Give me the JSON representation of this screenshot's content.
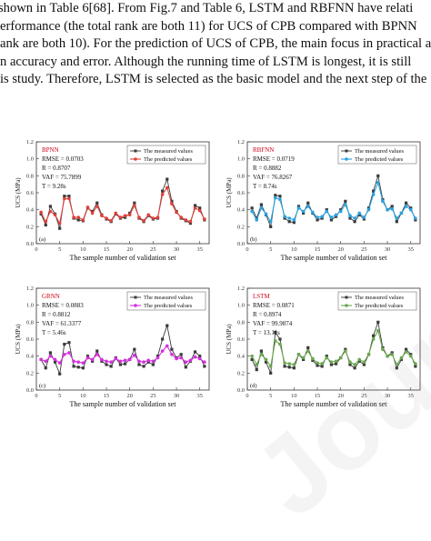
{
  "text_lines": [
    "shown in Table 6[68]. From Fig.7 and Table 6, LSTM and RBFNN have relati",
    "erformance (the total rank are both 11) for UCS of CPB compared with BPNN",
    "ank are both 10). For the prediction of UCS of CPB, the main focus in practical ap",
    "n accuracy and error. Although the running time of LSTM is longest, it is still",
    "is study. Therefore, LSTM is selected as the basic model and the next step of the"
  ],
  "watermark": "Journal Pre-proof",
  "colors": {
    "measured": "#3a3a3a",
    "title": "#d0021b"
  },
  "chart_data": [
    {
      "type": "line",
      "panel": "(a)",
      "model": "BPNN",
      "stats": [
        "RMSE = 0.0703",
        "R = 0.8707",
        "VAF = 75.7899",
        "T = 9.28s"
      ],
      "xlabel": "The sample number of validation set",
      "ylabel": "UCS (MPa)",
      "xlim": [
        0,
        37
      ],
      "ylim": [
        0.0,
        1.2
      ],
      "xticks": [
        "0",
        "5",
        "10",
        "15",
        "20",
        "25",
        "30",
        "35"
      ],
      "yticks": [
        "0.0",
        "0.2",
        "0.4",
        "0.6",
        "0.8",
        "1.0",
        "1.2"
      ],
      "legend": [
        "The measured values",
        "The predicted values"
      ],
      "color": "#e0413a",
      "series": [
        {
          "name": "The measured values",
          "values": [
            0.35,
            0.22,
            0.44,
            0.35,
            0.18,
            0.56,
            0.56,
            0.3,
            0.28,
            0.27,
            0.42,
            0.38,
            0.48,
            0.34,
            0.29,
            0.26,
            0.35,
            0.3,
            0.31,
            0.36,
            0.48,
            0.3,
            0.26,
            0.33,
            0.29,
            0.3,
            0.62,
            0.76,
            0.5,
            0.38,
            0.3,
            0.27,
            0.24,
            0.45,
            0.42,
            0.28
          ]
        },
        {
          "name": "The predicted values",
          "values": [
            0.37,
            0.26,
            0.38,
            0.34,
            0.24,
            0.53,
            0.53,
            0.31,
            0.31,
            0.28,
            0.43,
            0.36,
            0.44,
            0.33,
            0.3,
            0.27,
            0.36,
            0.31,
            0.33,
            0.34,
            0.45,
            0.31,
            0.27,
            0.34,
            0.3,
            0.31,
            0.58,
            0.66,
            0.47,
            0.37,
            0.31,
            0.28,
            0.26,
            0.42,
            0.39,
            0.29
          ]
        }
      ]
    },
    {
      "type": "line",
      "panel": "(b)",
      "model": "RBFNN",
      "stats": [
        "RMSE = 0.0719",
        "R = 0.8882",
        "VAF = 76.8267",
        "T = 8.74s"
      ],
      "xlabel": "The sample number of validation set",
      "ylabel": "UCS (MPa)",
      "xlim": [
        0,
        37
      ],
      "ylim": [
        0.0,
        1.2
      ],
      "xticks": [
        "0",
        "5",
        "10",
        "15",
        "20",
        "25",
        "30",
        "35"
      ],
      "yticks": [
        "0.0",
        "0.2",
        "0.4",
        "0.6",
        "0.8",
        "1.0",
        "1.2"
      ],
      "legend": [
        "The measured values",
        "The predicted values"
      ],
      "color": "#2aa3e0",
      "series": [
        {
          "name": "The measured values",
          "values": [
            0.42,
            0.3,
            0.46,
            0.34,
            0.2,
            0.57,
            0.56,
            0.3,
            0.26,
            0.25,
            0.44,
            0.36,
            0.48,
            0.36,
            0.28,
            0.3,
            0.4,
            0.28,
            0.32,
            0.4,
            0.5,
            0.3,
            0.26,
            0.34,
            0.29,
            0.42,
            0.62,
            0.8,
            0.52,
            0.4,
            0.44,
            0.26,
            0.36,
            0.48,
            0.42,
            0.28
          ]
        },
        {
          "name": "The predicted values",
          "values": [
            0.38,
            0.28,
            0.42,
            0.35,
            0.26,
            0.54,
            0.52,
            0.32,
            0.3,
            0.28,
            0.42,
            0.38,
            0.44,
            0.37,
            0.31,
            0.32,
            0.38,
            0.31,
            0.34,
            0.38,
            0.46,
            0.33,
            0.3,
            0.36,
            0.31,
            0.4,
            0.58,
            0.72,
            0.5,
            0.4,
            0.41,
            0.3,
            0.36,
            0.44,
            0.4,
            0.3
          ]
        }
      ]
    },
    {
      "type": "line",
      "panel": "(c)",
      "model": "GRNN",
      "stats": [
        "RMSE = 0.0883",
        "R = 0.8812",
        "VAF = 61.3377",
        "T = 5.46s"
      ],
      "xlabel": "The sample number of validation set",
      "ylabel": "UCS (MPa)",
      "xlim": [
        0,
        37
      ],
      "ylim": [
        0.0,
        1.2
      ],
      "xticks": [
        "0",
        "5",
        "10",
        "15",
        "20",
        "25",
        "30",
        "35"
      ],
      "yticks": [
        "0.0",
        "0.2",
        "0.4",
        "0.6",
        "0.8",
        "1.0",
        "1.2"
      ],
      "legend": [
        "The measured values",
        "The predicted values"
      ],
      "color": "#d62ee0",
      "series": [
        {
          "name": "The measured values",
          "values": [
            0.36,
            0.26,
            0.44,
            0.33,
            0.19,
            0.54,
            0.56,
            0.28,
            0.27,
            0.26,
            0.4,
            0.34,
            0.46,
            0.34,
            0.3,
            0.28,
            0.38,
            0.3,
            0.31,
            0.36,
            0.48,
            0.3,
            0.28,
            0.33,
            0.3,
            0.4,
            0.6,
            0.76,
            0.48,
            0.38,
            0.42,
            0.27,
            0.34,
            0.45,
            0.4,
            0.28
          ]
        },
        {
          "name": "The predicted values",
          "values": [
            0.36,
            0.34,
            0.4,
            0.36,
            0.32,
            0.42,
            0.44,
            0.34,
            0.33,
            0.32,
            0.38,
            0.36,
            0.42,
            0.36,
            0.34,
            0.33,
            0.37,
            0.34,
            0.35,
            0.36,
            0.41,
            0.34,
            0.33,
            0.35,
            0.34,
            0.38,
            0.46,
            0.52,
            0.42,
            0.37,
            0.38,
            0.33,
            0.35,
            0.39,
            0.37,
            0.33
          ]
        }
      ]
    },
    {
      "type": "line",
      "panel": "(d)",
      "model": "LSTM",
      "stats": [
        "RMSE = 0.0871",
        "R = 0.8974",
        "VAF = 99.9874",
        "T = 13.11s"
      ],
      "xlabel": "The sample number of validation set",
      "ylabel": "UCS (MPa)",
      "xlim": [
        0,
        37
      ],
      "ylim": [
        0.0,
        1.2
      ],
      "xticks": [
        "0",
        "5",
        "10",
        "15",
        "20",
        "25",
        "30",
        "35"
      ],
      "yticks": [
        "0.0",
        "0.2",
        "0.4",
        "0.6",
        "0.8",
        "1.0",
        "1.2"
      ],
      "legend": [
        "The measured values",
        "The predicted values"
      ],
      "color": "#6aa84f",
      "series": [
        {
          "name": "The measured values",
          "values": [
            0.36,
            0.24,
            0.46,
            0.33,
            0.2,
            0.68,
            0.6,
            0.28,
            0.27,
            0.26,
            0.42,
            0.36,
            0.5,
            0.35,
            0.29,
            0.28,
            0.4,
            0.3,
            0.31,
            0.38,
            0.48,
            0.3,
            0.26,
            0.34,
            0.3,
            0.42,
            0.64,
            0.8,
            0.5,
            0.4,
            0.44,
            0.26,
            0.36,
            0.48,
            0.42,
            0.28
          ]
        },
        {
          "name": "The predicted values",
          "values": [
            0.4,
            0.3,
            0.42,
            0.36,
            0.28,
            0.58,
            0.54,
            0.32,
            0.31,
            0.3,
            0.42,
            0.38,
            0.46,
            0.37,
            0.32,
            0.31,
            0.38,
            0.33,
            0.34,
            0.38,
            0.46,
            0.33,
            0.3,
            0.36,
            0.33,
            0.42,
            0.6,
            0.7,
            0.48,
            0.4,
            0.42,
            0.3,
            0.38,
            0.45,
            0.4,
            0.31
          ]
        }
      ]
    }
  ]
}
